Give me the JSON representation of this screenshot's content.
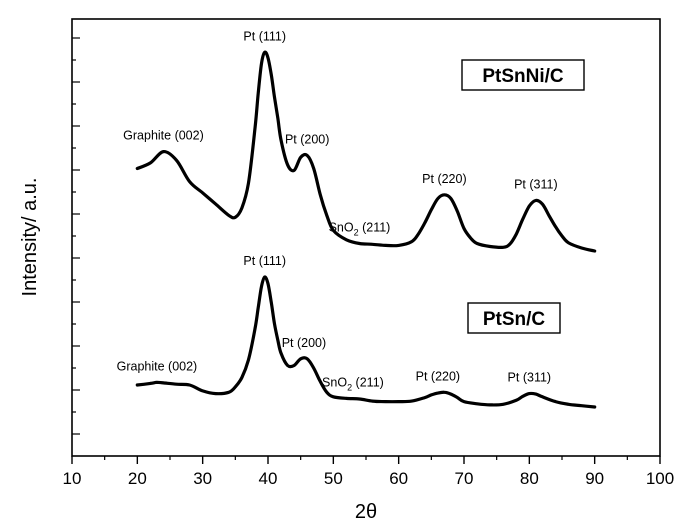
{
  "chart_data": {
    "type": "line",
    "xlabel": "2θ",
    "ylabel": "Intensity/ a.u.",
    "xlim": [
      10,
      100
    ],
    "xticks": [
      10,
      20,
      30,
      40,
      50,
      60,
      70,
      80,
      90,
      100
    ],
    "y_tick_labels_shown": false,
    "grid": false,
    "series": [
      {
        "name": "PtSnNi/C",
        "x": [
          20,
          22,
          24,
          26,
          28,
          30,
          32,
          34,
          35,
          36,
          37,
          38,
          38.5,
          39,
          39.5,
          40,
          40.5,
          41,
          41.5,
          42,
          43,
          44,
          45,
          46,
          47,
          48,
          49,
          50,
          52,
          54,
          56,
          58,
          60,
          62,
          63,
          64,
          65,
          66,
          67,
          68,
          69,
          70,
          71,
          72,
          74,
          76,
          77,
          78,
          79,
          80,
          81,
          82,
          83,
          84,
          85,
          86,
          88,
          90
        ],
        "values": [
          2.2,
          2.35,
          2.65,
          2.42,
          1.85,
          1.55,
          1.25,
          0.95,
          0.9,
          1.15,
          1.8,
          3.25,
          4.2,
          5.0,
          5.3,
          5.15,
          4.7,
          4.1,
          3.55,
          2.95,
          2.3,
          2.15,
          2.5,
          2.55,
          2.2,
          1.5,
          0.95,
          0.55,
          0.3,
          0.2,
          0.18,
          0.15,
          0.15,
          0.25,
          0.45,
          0.75,
          1.1,
          1.4,
          1.5,
          1.4,
          1.05,
          0.6,
          0.35,
          0.2,
          0.12,
          0.1,
          0.18,
          0.45,
          0.85,
          1.2,
          1.35,
          1.25,
          0.95,
          0.65,
          0.4,
          0.22,
          0.08,
          0.0
        ]
      },
      {
        "name": "PtSn/C",
        "x": [
          20,
          22,
          23,
          24,
          26,
          28,
          30,
          32,
          34,
          35,
          36,
          37,
          38,
          38.5,
          39,
          39.5,
          40,
          40.5,
          41,
          41.5,
          42,
          43,
          44,
          45,
          46,
          47,
          48,
          49,
          50,
          52,
          54,
          56,
          58,
          60,
          62,
          64,
          65,
          66,
          67,
          68,
          69,
          70,
          72,
          74,
          76,
          78,
          79,
          80,
          81,
          82,
          84,
          86,
          88,
          90
        ],
        "values": [
          0.82,
          0.88,
          0.92,
          0.9,
          0.85,
          0.82,
          0.6,
          0.5,
          0.55,
          0.75,
          1.1,
          1.75,
          2.9,
          3.7,
          4.5,
          4.85,
          4.6,
          3.9,
          3.1,
          2.5,
          2.0,
          1.55,
          1.55,
          1.8,
          1.8,
          1.45,
          0.95,
          0.55,
          0.38,
          0.32,
          0.3,
          0.22,
          0.2,
          0.2,
          0.22,
          0.35,
          0.45,
          0.52,
          0.55,
          0.48,
          0.35,
          0.2,
          0.12,
          0.08,
          0.1,
          0.25,
          0.4,
          0.5,
          0.48,
          0.38,
          0.2,
          0.1,
          0.05,
          0.0
        ]
      }
    ],
    "annotations": [
      {
        "series": "PtSnNi/C",
        "text": "Graphite (002)",
        "x": 24,
        "y": 2.65
      },
      {
        "series": "PtSnNi/C",
        "text": "Pt (111)",
        "x": 39.5,
        "y": 5.3
      },
      {
        "series": "PtSnNi/C",
        "text": "Pt (200)",
        "x": 46,
        "y": 2.55
      },
      {
        "series": "PtSnNi/C",
        "text": "SnO",
        "subscript": "2",
        "suffix": " (211)",
        "x": 54,
        "y": 0.2
      },
      {
        "series": "PtSnNi/C",
        "text": "Pt (220)",
        "x": 67,
        "y": 1.5
      },
      {
        "series": "PtSnNi/C",
        "text": "Pt (311)",
        "x": 81,
        "y": 1.35
      },
      {
        "series": "PtSn/C",
        "text": "Graphite (002)",
        "x": 23,
        "y": 0.92
      },
      {
        "series": "PtSn/C",
        "text": "Pt (111)",
        "x": 39.5,
        "y": 4.85
      },
      {
        "series": "PtSn/C",
        "text": "Pt (200)",
        "x": 45.5,
        "y": 1.8
      },
      {
        "series": "PtSn/C",
        "text": "SnO",
        "subscript": "2",
        "suffix": " (211)",
        "x": 53,
        "y": 0.32
      },
      {
        "series": "PtSn/C",
        "text": "Pt (220)",
        "x": 66,
        "y": 0.55
      },
      {
        "series": "PtSn/C",
        "text": "Pt (311)",
        "x": 80,
        "y": 0.5
      }
    ],
    "legend_boxes": [
      "PtSnNi/C",
      "PtSn/C"
    ]
  }
}
